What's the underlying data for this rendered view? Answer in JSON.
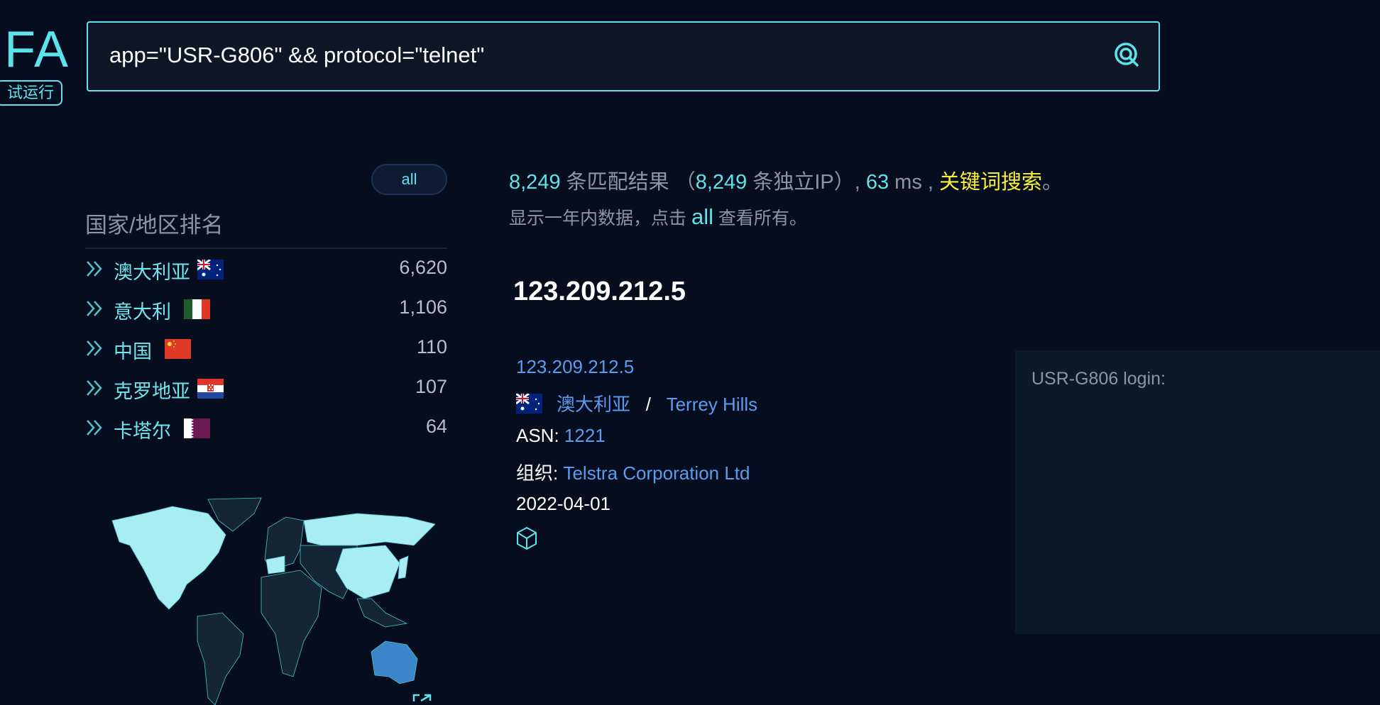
{
  "logo": {
    "text": "FA",
    "tag": "试运行"
  },
  "search": {
    "query": "app=\"USR-G806\" && protocol=\"telnet\"",
    "icon": "search-icon"
  },
  "sidebar": {
    "all_label": "all",
    "title": "国家/地区排名",
    "countries": [
      {
        "name": "澳大利亚",
        "flag": "australia",
        "count": "6,620"
      },
      {
        "name": "意大利",
        "flag": "italy",
        "count": "1,106"
      },
      {
        "name": "中国",
        "flag": "china",
        "count": "110"
      },
      {
        "name": "克罗地亚",
        "flag": "croatia",
        "count": "107"
      },
      {
        "name": "卡塔尔",
        "flag": "qatar",
        "count": "64"
      }
    ]
  },
  "stats": {
    "total": "8,249",
    "total_suffix": " 条匹配结果 （",
    "unique": "8,249",
    "unique_suffix": " 条独立IP）, ",
    "ms": "63",
    "ms_suffix": " ms , ",
    "keyword": "关键词搜索",
    "end": "。"
  },
  "hint": {
    "prefix": "显示一年内数据，点击 ",
    "link": "all",
    "suffix": " 查看所有。"
  },
  "result": {
    "title": "123.209.212.5",
    "ip_link": "123.209.212.5",
    "country": "澳大利亚",
    "sep": "/",
    "city": "Terrey Hills",
    "asn_label": "ASN: ",
    "asn": "1221",
    "org_label": "组织: ",
    "org": "Telstra Corporation Ltd",
    "date": "2022-04-01",
    "banner": "USR-G806 login:"
  },
  "colors": {
    "accent": "#5fe3ea",
    "link": "#5b9cf0",
    "keyword": "#f6f03c",
    "highlight_country": "#3a86c8"
  }
}
